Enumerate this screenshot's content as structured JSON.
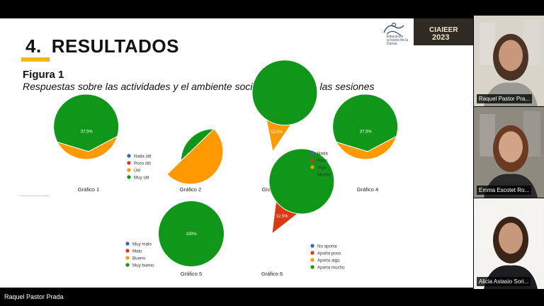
{
  "slide": {
    "section_number": "4.",
    "section_title": "RESULTADOS",
    "figure_label": "Figura 1",
    "figure_caption": "Respuestas sobre las actividades y el ambiente socioemocional de las sesiones",
    "logos": {
      "left_text": [
        "Educación",
        "a través de la",
        "Danza"
      ],
      "right_line1": "CIAIEER",
      "right_line2": "2023"
    }
  },
  "legends": [
    {
      "items": [
        "Nada útil",
        "Poco útil",
        "Útil",
        "Muy útil"
      ],
      "colors": [
        "#3366cc",
        "#dc3912",
        "#ff9900",
        "#109618"
      ]
    },
    {
      "items": [
        "Nada",
        "Poco",
        "Algo",
        "Mucho"
      ],
      "colors": [
        "#3366cc",
        "#dc3912",
        "#ff9900",
        "#109618"
      ]
    },
    {
      "items": [
        "Muy malo",
        "Malo",
        "Bueno",
        "Muy bueno"
      ],
      "colors": [
        "#3366cc",
        "#dc3912",
        "#ff9900",
        "#109618"
      ]
    },
    {
      "items": [
        "No aporta",
        "Aporta poco",
        "Aporta algo",
        "Aporta mucho"
      ],
      "colors": [
        "#3366cc",
        "#dc3912",
        "#ff9900",
        "#109618"
      ]
    }
  ],
  "chart_data": [
    {
      "type": "pie",
      "title": "Gráfico 1",
      "slices": [
        {
          "label": "Muy útil",
          "value": 62.5,
          "text": "62,5%",
          "color": "#109618"
        },
        {
          "label": "Útil",
          "value": 37.5,
          "text": "37,5%",
          "color": "#ff9900"
        }
      ]
    },
    {
      "type": "pie",
      "title": "Gráfico 2",
      "slices": [
        {
          "label": "Muy útil",
          "value": 37.5,
          "text": "37,5%",
          "color": "#109618"
        },
        {
          "label": "Poco útil",
          "value": 12.5,
          "text": "12,5%",
          "color": "#dc3912"
        },
        {
          "label": "Útil",
          "value": 50,
          "text": "50%",
          "color": "#ff9900"
        }
      ]
    },
    {
      "type": "pie",
      "title": "Gráfico 3",
      "slices": [
        {
          "label": "Mucho",
          "value": 87.5,
          "text": "87,5%",
          "color": "#109618"
        },
        {
          "label": "Algo",
          "value": 12.5,
          "text": "12,5%",
          "color": "#ff9900"
        }
      ]
    },
    {
      "type": "pie",
      "title": "Gráfico 4",
      "slices": [
        {
          "label": "Mucho",
          "value": 62.5,
          "text": "62,5%",
          "color": "#109618"
        },
        {
          "label": "Algo",
          "value": 37.5,
          "text": "37,5%",
          "color": "#ff9900"
        }
      ]
    },
    {
      "type": "pie",
      "title": "Gráfico 5",
      "slices": [
        {
          "label": "Muy bueno",
          "value": 100,
          "text": "100%",
          "color": "#109618"
        }
      ]
    },
    {
      "type": "pie",
      "title": "Gráfico 6",
      "slices": [
        {
          "label": "Aporta mucho",
          "value": 87.5,
          "text": "87,5%",
          "color": "#109618"
        },
        {
          "label": "Aporta poco",
          "value": 12.5,
          "text": "12,5%",
          "color": "#dc3912"
        }
      ]
    }
  ],
  "participants": [
    {
      "name": "Raquel Pastor Pra...",
      "bg": "#d9d4ca",
      "skin": "#c9987a",
      "hair": "#4a3324",
      "shirt": "#9a9a94"
    },
    {
      "name": "Emma Escotet Ro...",
      "bg": "#8f8a80",
      "skin": "#d2a487",
      "hair": "#6a3a22",
      "shirt": "#2a2a2a"
    },
    {
      "name": "Alicia Astasio Sori...",
      "bg": "#f4f3ef",
      "skin": "#c7987c",
      "hair": "#3a2418",
      "shirt": "#1e1e22"
    }
  ],
  "active_speaker": "Raquel Pastor Prada"
}
